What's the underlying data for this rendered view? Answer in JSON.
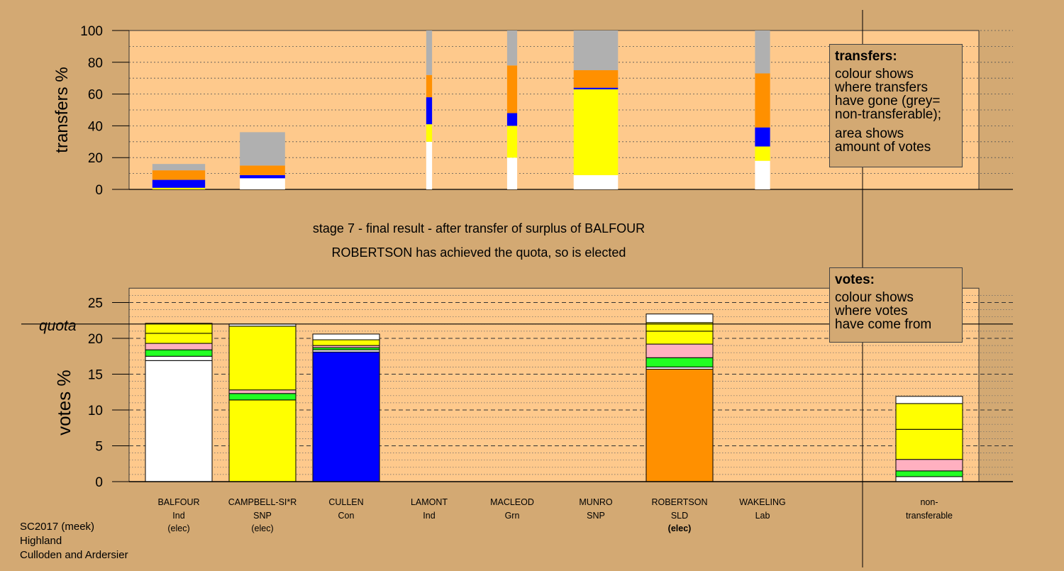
{
  "chart_data": [
    {
      "type": "bar",
      "stacked": true,
      "ylabel": "transfers %",
      "ylim": [
        0,
        100
      ],
      "yticks": [
        0,
        20,
        40,
        60,
        80,
        100
      ],
      "grid": "dotted",
      "legend_placement": "right",
      "categories": [
        "BALFOUR",
        "CAMPBELL-SI*R",
        "CULLEN",
        "LAMONT",
        "MACLEOD",
        "MUNRO",
        "ROBERTSON",
        "WAKELING"
      ],
      "bars": [
        {
          "category": "BALFOUR",
          "width": 0.63,
          "segments": [
            {
              "color": "#ffff00",
              "value": 1
            },
            {
              "color": "#0000ff",
              "value": 5
            },
            {
              "color": "#ff9000",
              "value": 6
            },
            {
              "color": "#b0b0b0",
              "value": 4
            }
          ]
        },
        {
          "category": "CAMPBELL-SI*R",
          "width": 0.54,
          "segments": [
            {
              "color": "#ffffff",
              "value": 7
            },
            {
              "color": "#0000ff",
              "value": 2
            },
            {
              "color": "#ff9000",
              "value": 6
            },
            {
              "color": "#b0b0b0",
              "value": 21
            }
          ]
        },
        {
          "category": "CULLEN",
          "width": 0,
          "segments": []
        },
        {
          "category": "LAMONT",
          "width": 0.07,
          "segments": [
            {
              "color": "#ffffff",
              "value": 30
            },
            {
              "color": "#ffff00",
              "value": 11
            },
            {
              "color": "#0000ff",
              "value": 17
            },
            {
              "color": "#ff9000",
              "value": 14
            },
            {
              "color": "#b0b0b0",
              "value": 28
            }
          ]
        },
        {
          "category": "MACLEOD",
          "width": 0.12,
          "segments": [
            {
              "color": "#ffffff",
              "value": 20
            },
            {
              "color": "#ffff00",
              "value": 20
            },
            {
              "color": "#0000ff",
              "value": 8
            },
            {
              "color": "#ff9000",
              "value": 30
            },
            {
              "color": "#b0b0b0",
              "value": 22
            }
          ]
        },
        {
          "category": "MUNRO",
          "width": 0.53,
          "segments": [
            {
              "color": "#ffffff",
              "value": 9
            },
            {
              "color": "#ffff00",
              "value": 54
            },
            {
              "color": "#0000ff",
              "value": 1
            },
            {
              "color": "#ff9000",
              "value": 11
            },
            {
              "color": "#b0b0b0",
              "value": 25
            }
          ]
        },
        {
          "category": "ROBERTSON",
          "width": 0,
          "segments": []
        },
        {
          "category": "WAKELING",
          "width": 0.18,
          "segments": [
            {
              "color": "#ffffff",
              "value": 18
            },
            {
              "color": "#ffff00",
              "value": 9
            },
            {
              "color": "#0000ff",
              "value": 12
            },
            {
              "color": "#ff9000",
              "value": 34
            },
            {
              "color": "#b0b0b0",
              "value": 27
            }
          ]
        }
      ]
    },
    {
      "type": "bar",
      "stacked": true,
      "ylabel": "votes %",
      "ylim": [
        0,
        27
      ],
      "yticks": [
        0,
        5,
        10,
        15,
        20,
        25
      ],
      "quota": 22,
      "quota_label": "quota",
      "grid": "dotted minor, dashed major",
      "legend_placement": "right",
      "categories": [
        "BALFOUR",
        "CAMPBELL-SI*R",
        "CULLEN",
        "LAMONT",
        "MACLEOD",
        "MUNRO",
        "ROBERTSON",
        "WAKELING",
        "non-transferable"
      ],
      "bars": [
        {
          "category": "BALFOUR",
          "segments": [
            {
              "color": "#ffffff",
              "value": 16.9
            },
            {
              "color": "#ffffff",
              "value": 0.6
            },
            {
              "color": "#22ff22",
              "value": 0.9
            },
            {
              "color": "#ffb0c0",
              "value": 0.9
            },
            {
              "color": "#ffff00",
              "value": 1.4
            },
            {
              "color": "#ffff00",
              "value": 1.4
            }
          ]
        },
        {
          "category": "CAMPBELL-SI*R",
          "segments": [
            {
              "color": "#ffff00",
              "value": 11.4
            },
            {
              "color": "#22ff22",
              "value": 0.9
            },
            {
              "color": "#ffb0c0",
              "value": 0.5
            },
            {
              "color": "#ffff00",
              "value": 8.9
            },
            {
              "color": "#ffffff",
              "value": 0.3
            }
          ]
        },
        {
          "category": "CULLEN",
          "segments": [
            {
              "color": "#0000ff",
              "value": 18.1
            },
            {
              "color": "#ffffff",
              "value": 0.3
            },
            {
              "color": "#22ff22",
              "value": 0.3
            },
            {
              "color": "#ffb0c0",
              "value": 0.3
            },
            {
              "color": "#ffff00",
              "value": 0.8
            },
            {
              "color": "#ffffff",
              "value": 0.8
            }
          ]
        },
        {
          "category": "LAMONT",
          "segments": []
        },
        {
          "category": "MACLEOD",
          "segments": []
        },
        {
          "category": "MUNRO",
          "segments": []
        },
        {
          "category": "ROBERTSON",
          "segments": [
            {
              "color": "#ff9000",
              "value": 15.7
            },
            {
              "color": "#ffffff",
              "value": 0.3
            },
            {
              "color": "#22ff22",
              "value": 1.3
            },
            {
              "color": "#ffb0c0",
              "value": 1.9
            },
            {
              "color": "#ffff00",
              "value": 1.8
            },
            {
              "color": "#ffff00",
              "value": 1.2
            },
            {
              "color": "#ffffff",
              "value": 1.2
            }
          ]
        },
        {
          "category": "WAKELING",
          "segments": []
        },
        {
          "category": "non-transferable",
          "segments": [
            {
              "color": "#ffffff",
              "value": 0.7
            },
            {
              "color": "#22ff22",
              "value": 0.8
            },
            {
              "color": "#ffb0c0",
              "value": 1.6
            },
            {
              "color": "#ffff00",
              "value": 4.2
            },
            {
              "color": "#ffff00",
              "value": 3.6
            },
            {
              "color": "#ffffff",
              "value": 1.0
            }
          ]
        }
      ]
    }
  ],
  "candidates": [
    {
      "name": "BALFOUR",
      "party": "Ind",
      "status": "(elec)",
      "status_bold": false
    },
    {
      "name": "CAMPBELL-SI*R",
      "party": "SNP",
      "status": "(elec)",
      "status_bold": false
    },
    {
      "name": "CULLEN",
      "party": "Con",
      "status": "",
      "status_bold": false
    },
    {
      "name": "LAMONT",
      "party": "Ind",
      "status": "",
      "status_bold": false
    },
    {
      "name": "MACLEOD",
      "party": "Grn",
      "status": "",
      "status_bold": false
    },
    {
      "name": "MUNRO",
      "party": "SNP",
      "status": "",
      "status_bold": false
    },
    {
      "name": "ROBERTSON",
      "party": "SLD",
      "status": "(elec)",
      "status_bold": true
    },
    {
      "name": "WAKELING",
      "party": "Lab",
      "status": "",
      "status_bold": false
    }
  ],
  "nontransferable_label": {
    "line1": "non-",
    "line2": "transferable"
  },
  "stage_title": "stage 7 - final result - after transfer of surplus of BALFOUR",
  "stage_subtitle": "ROBERTSON has achieved the quota, so is elected",
  "legend_transfers": {
    "title": "transfers:",
    "lines1": [
      "colour shows",
      "where transfers",
      "have gone (grey=",
      "non-transferable);"
    ],
    "lines2": [
      "area shows",
      "amount of votes"
    ]
  },
  "legend_votes": {
    "title": "votes:",
    "lines": [
      "colour shows",
      "where votes",
      "have come from"
    ]
  },
  "footer": {
    "line1": "SC2017 (meek)",
    "line2": "Highland",
    "line3": "Culloden and Ardersier"
  }
}
